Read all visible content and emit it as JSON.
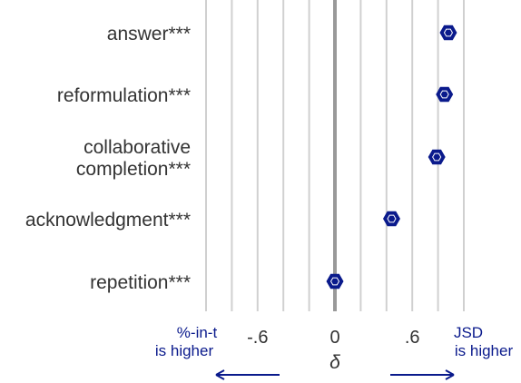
{
  "chart_data": {
    "type": "scatter",
    "categories": [
      "answer***",
      "reformulation***",
      "collaborative completion***",
      "acknowledgment***",
      "repetition***"
    ],
    "category_lines": [
      [
        "answer***"
      ],
      [
        "reformulation***"
      ],
      [
        "collaborative",
        "completion***"
      ],
      [
        "acknowledgment***"
      ],
      [
        "repetition***"
      ]
    ],
    "values": [
      0.88,
      0.85,
      0.79,
      0.44,
      0.0
    ],
    "x_ticks": [
      {
        "value": -0.6,
        "label": "-.6"
      },
      {
        "value": 0,
        "label": "0"
      },
      {
        "value": 0.6,
        "label": ".6"
      }
    ],
    "xlim": [
      -1.0,
      1.0
    ],
    "xlabel": "δ",
    "grid": true,
    "left_note": [
      "%-in-t",
      "is higher"
    ],
    "right_note": [
      "JSD",
      "is higher"
    ],
    "colors": {
      "marker": "#0a1a8c",
      "note": "#0a1a8c",
      "grid": "#d0d0d0",
      "zero_line": "#999999",
      "text": "#333333"
    }
  }
}
